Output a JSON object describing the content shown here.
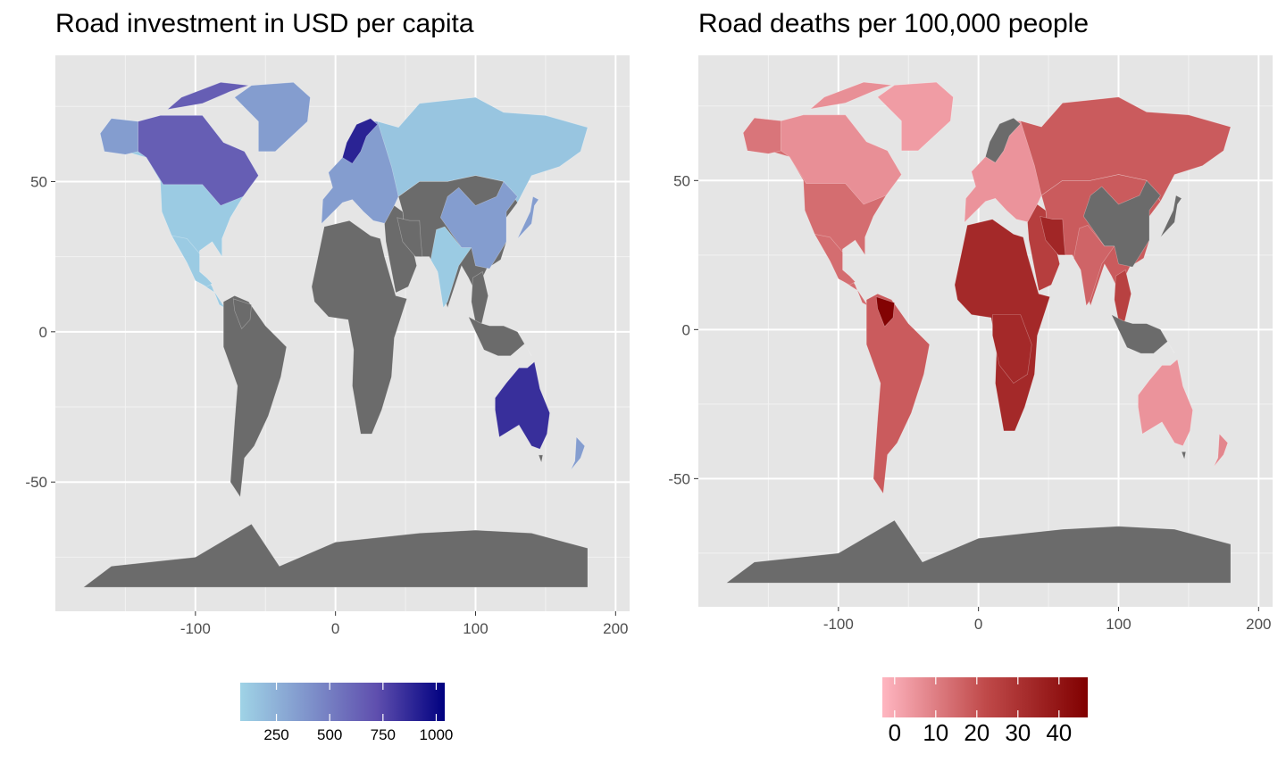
{
  "chart_data": [
    {
      "type": "map",
      "title": "Road investment in USD per capita",
      "xlabel": "",
      "ylabel": "",
      "xlim": [
        -200,
        210
      ],
      "ylim": [
        -93,
        92
      ],
      "x_ticks": [
        -100,
        0,
        100,
        200
      ],
      "y_ticks": [
        50,
        0,
        -50
      ],
      "grid": true,
      "legend_position": "bottom",
      "missing_color": "#6b6b6b",
      "legend": {
        "type": "colorbar",
        "min": 80,
        "max": 1040,
        "ticks": [
          250,
          500,
          750,
          1000
        ],
        "colors": [
          "#9fd3e6",
          "#7f93cb",
          "#5f4fae",
          "#000080"
        ]
      },
      "regions": [
        {
          "name": "North America (USA)",
          "value": 350
        },
        {
          "name": "Canada",
          "value": 650
        },
        {
          "name": "Alaska",
          "value": 350
        },
        {
          "name": "Greenland",
          "value": 350
        },
        {
          "name": "Mexico",
          "value": 120
        },
        {
          "name": "Russia",
          "value": 150
        },
        {
          "name": "Northern Europe",
          "value": 900
        },
        {
          "name": "Western Europe",
          "value": 350
        },
        {
          "name": "China",
          "value": 350
        },
        {
          "name": "India",
          "value": 120
        },
        {
          "name": "Japan",
          "value": 350
        },
        {
          "name": "Australia",
          "value": 850
        },
        {
          "name": "New Zealand",
          "value": 350
        }
      ]
    },
    {
      "type": "map",
      "title": "Road deaths per 100,000 people",
      "xlabel": "",
      "ylabel": "",
      "xlim": [
        -200,
        210
      ],
      "ylim": [
        -93,
        92
      ],
      "x_ticks": [
        -100,
        0,
        100,
        200
      ],
      "y_ticks": [
        50,
        0,
        -50
      ],
      "grid": true,
      "legend_position": "bottom",
      "missing_color": "#6b6b6b",
      "legend": {
        "type": "colorbar",
        "min": -3,
        "max": 47,
        "ticks": [
          0,
          10,
          20,
          30,
          40
        ],
        "colors": [
          "#ffb6c1",
          "#c04a4a",
          "#800000"
        ]
      },
      "regions": [
        {
          "name": "North America (USA)",
          "value": 12
        },
        {
          "name": "Canada",
          "value": 6
        },
        {
          "name": "Alaska",
          "value": 12
        },
        {
          "name": "Greenland",
          "value": 3
        },
        {
          "name": "Mexico",
          "value": 14
        },
        {
          "name": "South America",
          "value": 18
        },
        {
          "name": "Venezuela",
          "value": 46
        },
        {
          "name": "Africa",
          "value": 27
        },
        {
          "name": "Central Africa",
          "value": 33
        },
        {
          "name": "Europe",
          "value": 5
        },
        {
          "name": "Russia",
          "value": 18
        },
        {
          "name": "Middle East",
          "value": 26
        },
        {
          "name": "Iran",
          "value": 34
        },
        {
          "name": "Asia",
          "value": 18
        },
        {
          "name": "India",
          "value": 16
        },
        {
          "name": "Southeast Asia",
          "value": 25
        },
        {
          "name": "Australia",
          "value": 5
        },
        {
          "name": "New Zealand",
          "value": 8
        }
      ]
    }
  ]
}
